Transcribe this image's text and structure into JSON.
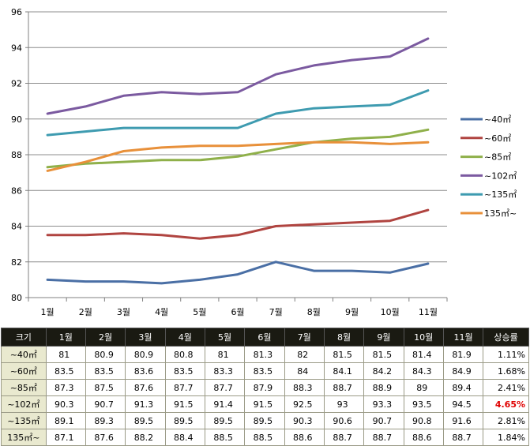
{
  "chart_data": {
    "type": "line",
    "categories": [
      "1월",
      "2월",
      "3월",
      "4월",
      "5월",
      "6월",
      "7월",
      "8월",
      "9월",
      "10월",
      "11월"
    ],
    "ylim": [
      80,
      96
    ],
    "yticks": [
      80,
      82,
      84,
      86,
      88,
      90,
      92,
      94,
      96
    ],
    "grid": "horizontal",
    "legend": "right",
    "series": [
      {
        "name": "~40㎡",
        "color": "#4a6fa5",
        "values": [
          81,
          80.9,
          80.9,
          80.8,
          81,
          81.3,
          82,
          81.5,
          81.5,
          81.4,
          81.9
        ]
      },
      {
        "name": "~60㎡",
        "color": "#b04440",
        "values": [
          83.5,
          83.5,
          83.6,
          83.5,
          83.3,
          83.5,
          84,
          84.1,
          84.2,
          84.3,
          84.9
        ]
      },
      {
        "name": "~85㎡",
        "color": "#8fb04a",
        "values": [
          87.3,
          87.5,
          87.6,
          87.7,
          87.7,
          87.9,
          88.3,
          88.7,
          88.9,
          89,
          89.4
        ]
      },
      {
        "name": "~102㎡",
        "color": "#7b5aa0",
        "values": [
          90.3,
          90.7,
          91.3,
          91.5,
          91.4,
          91.5,
          92.5,
          93,
          93.3,
          93.5,
          94.5
        ]
      },
      {
        "name": "~135㎡",
        "color": "#3e9bb0",
        "values": [
          89.1,
          89.3,
          89.5,
          89.5,
          89.5,
          89.5,
          90.3,
          90.6,
          90.7,
          90.8,
          91.6
        ]
      },
      {
        "name": "135㎡~",
        "color": "#e8903a",
        "values": [
          87.1,
          87.6,
          88.2,
          88.4,
          88.5,
          88.5,
          88.6,
          88.7,
          88.7,
          88.6,
          88.7
        ]
      }
    ]
  },
  "table": {
    "headers": [
      "크기",
      "1월",
      "2월",
      "3월",
      "4월",
      "5월",
      "6월",
      "7월",
      "8월",
      "9월",
      "10월",
      "11월",
      "상승률"
    ],
    "rows": [
      {
        "label": "~40㎡",
        "cells": [
          "81",
          "80.9",
          "80.9",
          "80.8",
          "81",
          "81.3",
          "82",
          "81.5",
          "81.5",
          "81.4",
          "81.9"
        ],
        "rate": "1.11%"
      },
      {
        "label": "~60㎡",
        "cells": [
          "83.5",
          "83.5",
          "83.6",
          "83.5",
          "83.3",
          "83.5",
          "84",
          "84.1",
          "84.2",
          "84.3",
          "84.9"
        ],
        "rate": "1.68%"
      },
      {
        "label": "~85㎡",
        "cells": [
          "87.3",
          "87.5",
          "87.6",
          "87.7",
          "87.7",
          "87.9",
          "88.3",
          "88.7",
          "88.9",
          "89",
          "89.4"
        ],
        "rate": "2.41%"
      },
      {
        "label": "~102㎡",
        "cells": [
          "90.3",
          "90.7",
          "91.3",
          "91.5",
          "91.4",
          "91.5",
          "92.5",
          "93",
          "93.3",
          "93.5",
          "94.5"
        ],
        "rate": "4.65%",
        "highlight": true
      },
      {
        "label": "~135㎡",
        "cells": [
          "89.1",
          "89.3",
          "89.5",
          "89.5",
          "89.5",
          "89.5",
          "90.3",
          "90.6",
          "90.7",
          "90.8",
          "91.6"
        ],
        "rate": "2.81%"
      },
      {
        "label": "135㎡~",
        "cells": [
          "87.1",
          "87.6",
          "88.2",
          "88.4",
          "88.5",
          "88.5",
          "88.6",
          "88.7",
          "88.7",
          "88.6",
          "88.7"
        ],
        "rate": "1.84%"
      }
    ]
  }
}
